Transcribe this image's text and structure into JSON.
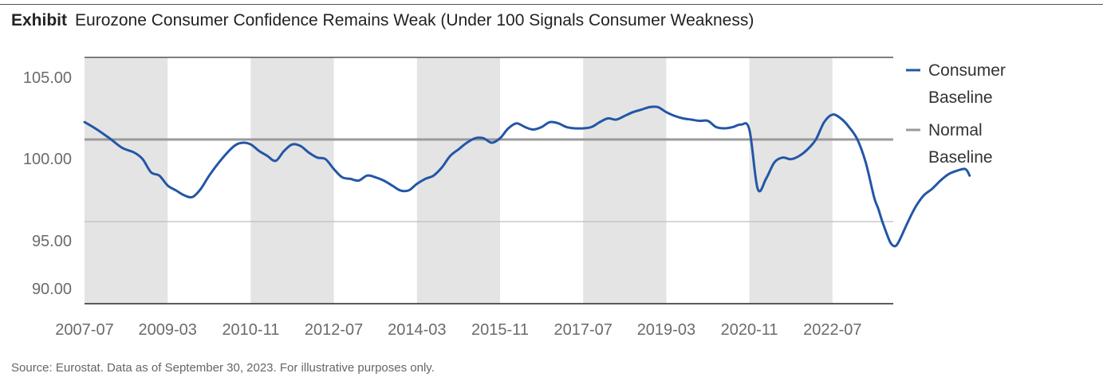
{
  "header": {
    "label": "Exhibit",
    "title": "Eurozone Consumer Confidence Remains Weak (Under 100 Signals Consumer Weakness)"
  },
  "source": "Source: Eurostat. Data as of September 30, 2023. For illustrative purposes only.",
  "colors": {
    "consumer_line": "#2356a6",
    "normal_line": "#9a9a9a",
    "shade": "#e4e4e4",
    "axis": "#444444",
    "tick_text": "#6b6b6b"
  },
  "chart_data": {
    "type": "line",
    "title": "Eurozone Consumer Confidence Remains Weak (Under 100 Signals Consumer Weakness)",
    "x_start": "2007-07",
    "x_end": "2023-09",
    "x_tick_labels": [
      "2007-07",
      "2009-03",
      "2010-11",
      "2012-07",
      "2014-03",
      "2015-11",
      "2017-07",
      "2019-03",
      "2020-11",
      "2022-07"
    ],
    "y_tick_labels": [
      "105.00",
      "100.00",
      "95.00",
      "90.00"
    ],
    "y_ticks_positions_in_data": [
      105,
      100,
      95,
      90
    ],
    "ylim": [
      90,
      105
    ],
    "gridlines_at": [
      105,
      100,
      95,
      90
    ],
    "shaded_periods": [
      [
        "2007-07",
        "2009-03"
      ],
      [
        "2010-11",
        "2012-07"
      ],
      [
        "2014-03",
        "2015-11"
      ],
      [
        "2017-07",
        "2019-03"
      ],
      [
        "2020-11",
        "2022-07"
      ]
    ],
    "legend_position": "right",
    "series": [
      {
        "name": "Consumer Baseline",
        "points": [
          [
            "2007-07",
            101.4
          ],
          [
            "2007-10",
            100.8
          ],
          [
            "2008-01",
            100.1
          ],
          [
            "2008-04",
            99.5
          ],
          [
            "2008-07",
            99.2
          ],
          [
            "2008-09",
            98.8
          ],
          [
            "2008-11",
            98.0
          ],
          [
            "2009-01",
            97.8
          ],
          [
            "2009-03",
            97.2
          ],
          [
            "2009-05",
            96.9
          ],
          [
            "2009-07",
            96.6
          ],
          [
            "2009-09",
            96.5
          ],
          [
            "2009-11",
            97.0
          ],
          [
            "2010-01",
            97.8
          ],
          [
            "2010-04",
            98.8
          ],
          [
            "2010-07",
            99.6
          ],
          [
            "2010-09",
            99.8
          ],
          [
            "2010-11",
            99.7
          ],
          [
            "2011-01",
            99.3
          ],
          [
            "2011-03",
            99.0
          ],
          [
            "2011-05",
            98.7
          ],
          [
            "2011-07",
            99.3
          ],
          [
            "2011-09",
            99.7
          ],
          [
            "2011-11",
            99.6
          ],
          [
            "2012-01",
            99.2
          ],
          [
            "2012-03",
            98.9
          ],
          [
            "2012-05",
            98.8
          ],
          [
            "2012-07",
            98.2
          ],
          [
            "2012-09",
            97.7
          ],
          [
            "2012-11",
            97.6
          ],
          [
            "2013-01",
            97.5
          ],
          [
            "2013-03",
            97.8
          ],
          [
            "2013-05",
            97.7
          ],
          [
            "2013-07",
            97.5
          ],
          [
            "2013-09",
            97.2
          ],
          [
            "2013-11",
            96.9
          ],
          [
            "2014-01",
            96.9
          ],
          [
            "2014-03",
            97.3
          ],
          [
            "2014-05",
            97.6
          ],
          [
            "2014-07",
            97.8
          ],
          [
            "2014-09",
            98.3
          ],
          [
            "2014-11",
            99.0
          ],
          [
            "2015-01",
            99.4
          ],
          [
            "2015-03",
            99.8
          ],
          [
            "2015-05",
            100.1
          ],
          [
            "2015-07",
            100.1
          ],
          [
            "2015-09",
            99.8
          ],
          [
            "2015-11",
            100.1
          ],
          [
            "2016-01",
            100.9
          ],
          [
            "2016-03",
            101.3
          ],
          [
            "2016-05",
            101.0
          ],
          [
            "2016-07",
            100.8
          ],
          [
            "2016-09",
            101.0
          ],
          [
            "2016-11",
            101.4
          ],
          [
            "2017-01",
            101.3
          ],
          [
            "2017-03",
            101.0
          ],
          [
            "2017-05",
            100.9
          ],
          [
            "2017-07",
            100.9
          ],
          [
            "2017-09",
            101.0
          ],
          [
            "2017-11",
            101.4
          ],
          [
            "2018-01",
            101.7
          ],
          [
            "2018-03",
            101.6
          ],
          [
            "2018-05",
            101.9
          ],
          [
            "2018-07",
            102.2
          ],
          [
            "2018-09",
            102.4
          ],
          [
            "2018-11",
            102.6
          ],
          [
            "2019-01",
            102.6
          ],
          [
            "2019-03",
            102.2
          ],
          [
            "2019-05",
            101.9
          ],
          [
            "2019-07",
            101.7
          ],
          [
            "2019-09",
            101.6
          ],
          [
            "2019-11",
            101.5
          ],
          [
            "2020-01",
            101.5
          ],
          [
            "2020-03",
            101.0
          ],
          [
            "2020-05",
            100.9
          ],
          [
            "2020-07",
            101.0
          ],
          [
            "2020-09",
            101.2
          ],
          [
            "2020-11",
            100.8
          ],
          [
            "2021-01",
            97.0
          ],
          [
            "2021-03",
            97.6
          ],
          [
            "2021-05",
            98.6
          ],
          [
            "2021-07",
            98.9
          ],
          [
            "2021-09",
            98.8
          ],
          [
            "2021-11",
            99.0
          ],
          [
            "2022-01",
            99.4
          ],
          [
            "2022-03",
            100.0
          ],
          [
            "2022-05",
            101.4
          ],
          [
            "2022-07",
            102.0
          ],
          [
            "2022-09",
            101.7
          ],
          [
            "2022-11",
            101.0
          ],
          [
            "2023-01",
            100.0
          ],
          [
            "2023-03",
            98.6
          ],
          [
            "2023-05",
            96.5
          ],
          [
            "2023-06",
            95.8
          ],
          [
            "2023-07",
            95.0
          ],
          [
            "2023-08",
            94.3
          ],
          [
            "2023-09",
            93.7
          ],
          [
            "2023-10",
            93.5
          ],
          [
            "2023-11",
            93.8
          ],
          [
            "2024-01",
            94.9
          ],
          [
            "2024-03",
            95.9
          ],
          [
            "2024-05",
            96.6
          ],
          [
            "2024-07",
            97.0
          ],
          [
            "2024-09",
            97.5
          ],
          [
            "2024-11",
            97.9
          ],
          [
            "2025-01",
            98.1
          ],
          [
            "2025-03",
            98.2
          ],
          [
            "2025-04",
            97.8
          ]
        ]
      },
      {
        "name": "Normal Baseline",
        "points": [
          [
            "2007-07",
            100.0
          ],
          [
            "2025-04",
            100.0
          ]
        ]
      }
    ],
    "legend": [
      {
        "line1": "Consumer",
        "line2": "Baseline"
      },
      {
        "line1": "Normal",
        "line2": "Baseline"
      }
    ]
  }
}
